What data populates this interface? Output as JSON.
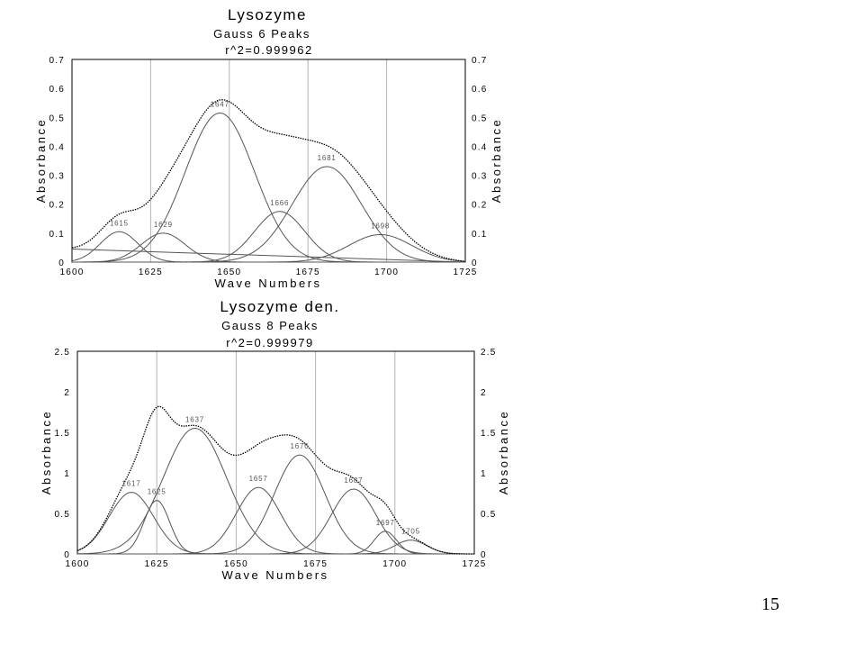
{
  "page_number": "15",
  "chart_data": [
    {
      "type": "line",
      "title": "Lysozyme",
      "subtitle": "Gauss 6 Peaks",
      "fit_note": "r^2=0.999962",
      "xlabel": "Wave Numbers",
      "ylabel": "Absorbance",
      "xlim": [
        1600,
        1725
      ],
      "ylim": [
        0,
        0.7
      ],
      "xticks": [
        "1600",
        "1625",
        "1650",
        "1675",
        "1700",
        "1725"
      ],
      "yticks": [
        "0",
        "0.1",
        "0.2",
        "0.3",
        "0.4",
        "0.5",
        "0.6",
        "0.7"
      ],
      "grid": true,
      "baseline": {
        "x": [
          1600,
          1725
        ],
        "y": [
          0.045,
          0.0
        ]
      },
      "peaks": [
        {
          "label": "1615",
          "center": 1615,
          "height": 0.105,
          "width": 6
        },
        {
          "label": "1629",
          "center": 1629,
          "height": 0.1,
          "width": 7
        },
        {
          "label": "1647",
          "center": 1647,
          "height": 0.515,
          "width": 11
        },
        {
          "label": "1666",
          "center": 1666,
          "height": 0.175,
          "width": 8
        },
        {
          "label": "1681",
          "center": 1681,
          "height": 0.33,
          "width": 11
        },
        {
          "label": "1698",
          "center": 1698,
          "height": 0.095,
          "width": 10
        }
      ]
    },
    {
      "type": "line",
      "title": "Lysozyme den.",
      "subtitle": "Gauss 8 Peaks",
      "fit_note": "r^2=0.999979",
      "xlabel": "Wave Numbers",
      "ylabel": "Absorbance",
      "xlim": [
        1600,
        1725
      ],
      "ylim": [
        0,
        2.5
      ],
      "xticks": [
        "1600",
        "1625",
        "1650",
        "1675",
        "1700",
        "1725"
      ],
      "yticks": [
        "0",
        "0.5",
        "1",
        "1.5",
        "2",
        "2.5"
      ],
      "grid": true,
      "peaks": [
        {
          "label": "1617",
          "center": 1617,
          "height": 0.76,
          "width": 7
        },
        {
          "label": "1625",
          "center": 1625,
          "height": 0.66,
          "width": 4
        },
        {
          "label": "1637",
          "center": 1637,
          "height": 1.55,
          "width": 10
        },
        {
          "label": "1657",
          "center": 1657,
          "height": 0.82,
          "width": 7
        },
        {
          "label": "1670",
          "center": 1670,
          "height": 1.22,
          "width": 8
        },
        {
          "label": "1687",
          "center": 1687,
          "height": 0.8,
          "width": 7
        },
        {
          "label": "1697",
          "center": 1697,
          "height": 0.28,
          "width": 3.5
        },
        {
          "label": "1705",
          "center": 1705,
          "height": 0.17,
          "width": 5
        }
      ]
    }
  ]
}
